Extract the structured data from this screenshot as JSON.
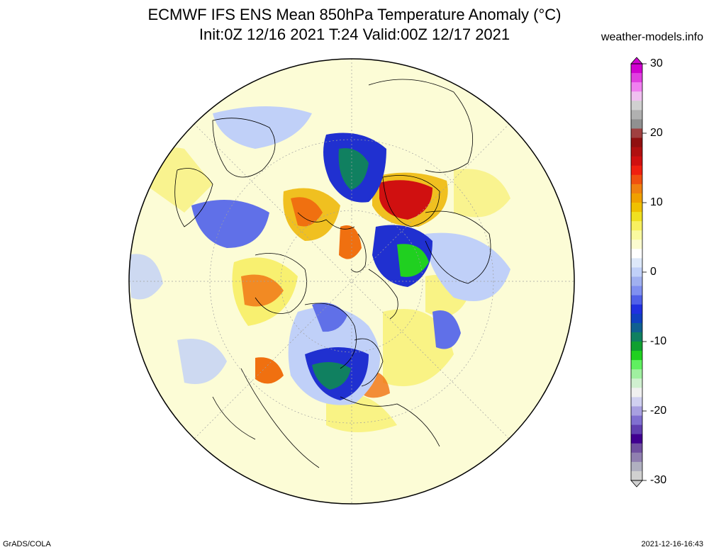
{
  "header": {
    "title_line1": "ECMWF IFS ENS Mean 850hPa Temperature Anomaly (°C)",
    "title_line2": "Init:0Z 12/16 2021  T:24 Valid:00Z 12/17 2021",
    "site": "weather-models.info"
  },
  "footer": {
    "software": "GrADS/COLA",
    "timestamp": "2021-12-16-16:43"
  },
  "colorbar": {
    "labels": [
      "30",
      "20",
      "10",
      "0",
      "-10",
      "-20",
      "-30"
    ],
    "colors": [
      "#d000d0",
      "#e040e0",
      "#f080f0",
      "#f0c0f0",
      "#d0d0d0",
      "#b0b0b0",
      "#909090",
      "#a04040",
      "#901010",
      "#b01010",
      "#d01010",
      "#f02010",
      "#f05010",
      "#f08010",
      "#f0a000",
      "#f0c000",
      "#f0e020",
      "#f8f060",
      "#fafaa0",
      "#fcfcd0",
      "#ffffff",
      "#dde8fa",
      "#c0d0f8",
      "#a0b0f0",
      "#8090f0",
      "#5060e8",
      "#2030e0",
      "#1040c0",
      "#106090",
      "#108060",
      "#10a030",
      "#20d020",
      "#60f060",
      "#a0f0a0",
      "#d0f0d0",
      "#f0f0f0",
      "#d0d0f0",
      "#a8a0e0",
      "#8070d0",
      "#6040b0",
      "#400090",
      "#7050a0",
      "#9080b0",
      "#b0b0c0",
      "#d0d0d0"
    ]
  },
  "map": {
    "projection": "north-polar-stereographic",
    "colors": {
      "background": "#fcfcd6",
      "coast": "#000000",
      "warm_light": "#f8f070",
      "warm_mid": "#f0c020",
      "warm_strong": "#f07010",
      "hot": "#d01010",
      "cool_light": "#c0d0f8",
      "cool_mid": "#6070e8",
      "cold": "#2030d0",
      "very_cold": "#108060",
      "extreme_cold": "#20d020"
    }
  }
}
